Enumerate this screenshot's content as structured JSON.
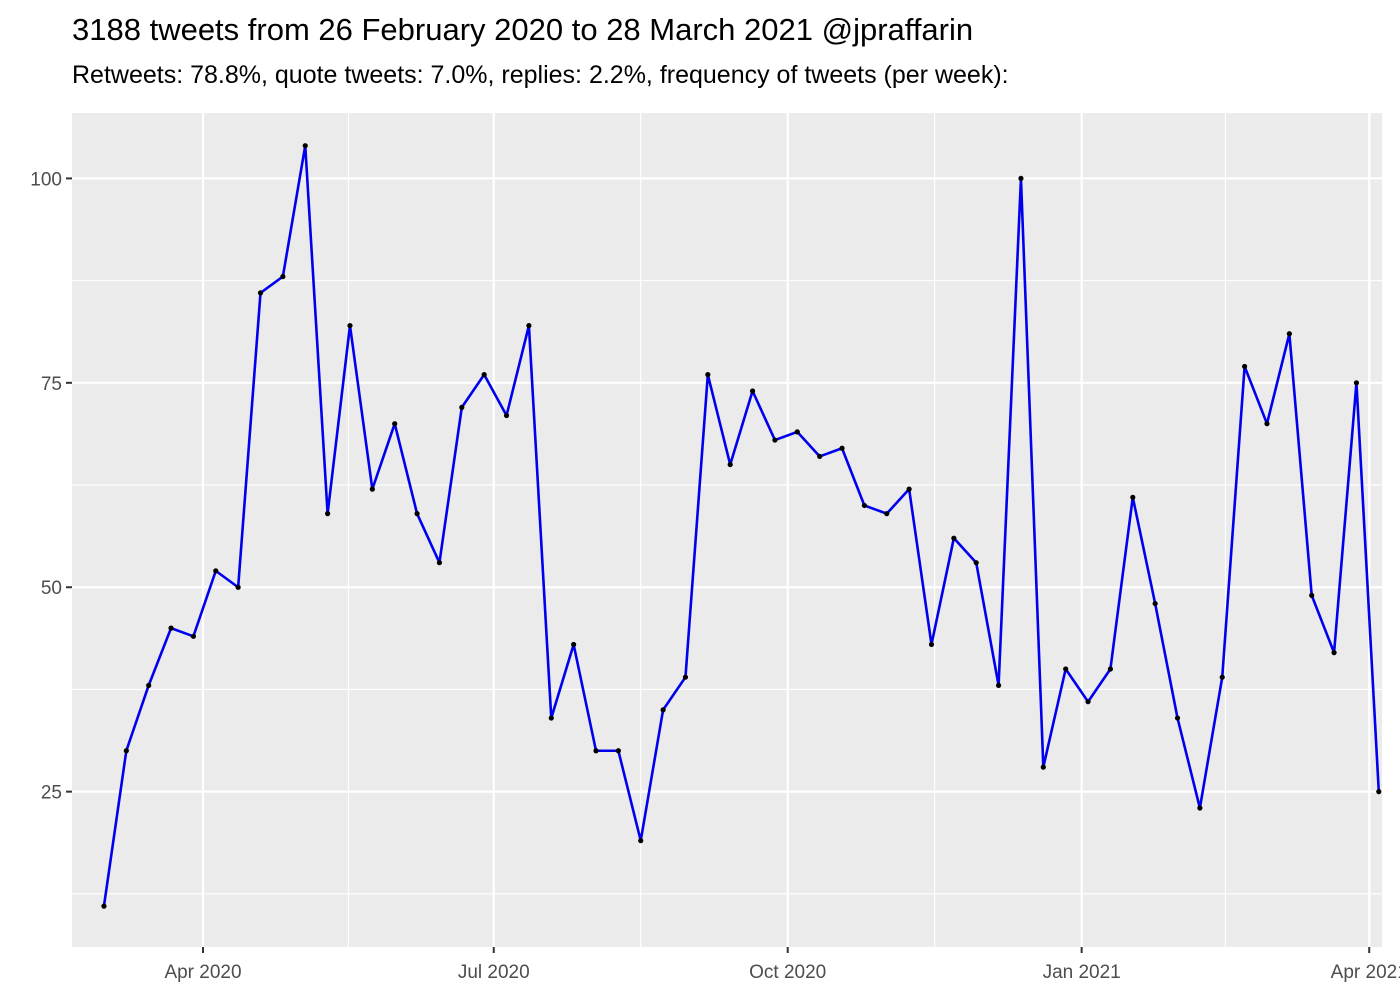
{
  "chart_data": {
    "type": "line",
    "title": "3188 tweets from 26 February 2020 to 28 March 2021 @jpraffarin",
    "subtitle": "Retweets: 78.8%, quote tweets: 7.0%, replies: 2.2%, frequency of tweets (per week):",
    "xlabel": "",
    "ylabel": "",
    "x_type": "date",
    "xlim": [
      "2020-02-20",
      "2021-04-05"
    ],
    "ylim": [
      6,
      108
    ],
    "grid": true,
    "legend": "none",
    "line_color": "#0000ee",
    "point_color": "#000000",
    "x_ticks": [
      {
        "date": "2020-04-01",
        "label": "Apr 2020"
      },
      {
        "date": "2020-07-01",
        "label": "Jul 2020"
      },
      {
        "date": "2020-10-01",
        "label": "Oct 2020"
      },
      {
        "date": "2021-01-01",
        "label": "Jan 2021"
      },
      {
        "date": "2021-04-01",
        "label": "Apr 2021"
      }
    ],
    "y_ticks": [
      25,
      50,
      75,
      100
    ],
    "x": [
      "2020-03-01",
      "2020-03-08",
      "2020-03-15",
      "2020-03-22",
      "2020-03-29",
      "2020-04-05",
      "2020-04-12",
      "2020-04-19",
      "2020-04-26",
      "2020-05-03",
      "2020-05-10",
      "2020-05-17",
      "2020-05-24",
      "2020-05-31",
      "2020-06-07",
      "2020-06-14",
      "2020-06-21",
      "2020-06-28",
      "2020-07-05",
      "2020-07-12",
      "2020-07-19",
      "2020-07-26",
      "2020-08-02",
      "2020-08-09",
      "2020-08-16",
      "2020-08-23",
      "2020-08-30",
      "2020-09-06",
      "2020-09-13",
      "2020-09-20",
      "2020-09-27",
      "2020-10-04",
      "2020-10-11",
      "2020-10-18",
      "2020-10-25",
      "2020-11-01",
      "2020-11-08",
      "2020-11-15",
      "2020-11-22",
      "2020-11-29",
      "2020-12-06",
      "2020-12-13",
      "2020-12-20",
      "2020-12-27",
      "2021-01-03",
      "2021-01-10",
      "2021-01-17",
      "2021-01-24",
      "2021-01-31",
      "2021-02-07",
      "2021-02-14",
      "2021-02-21",
      "2021-02-28",
      "2021-03-07",
      "2021-03-14",
      "2021-03-21",
      "2021-03-28",
      "2021-04-04"
    ],
    "values": [
      11,
      30,
      38,
      45,
      44,
      52,
      50,
      86,
      88,
      104,
      59,
      82,
      62,
      70,
      59,
      53,
      72,
      76,
      71,
      82,
      34,
      43,
      30,
      30,
      19,
      35,
      39,
      76,
      65,
      74,
      68,
      69,
      66,
      67,
      60,
      59,
      62,
      43,
      56,
      53,
      38,
      100,
      28,
      40,
      36,
      40,
      61,
      48,
      34,
      23,
      39,
      77,
      70,
      81,
      49,
      42,
      75,
      25
    ]
  }
}
